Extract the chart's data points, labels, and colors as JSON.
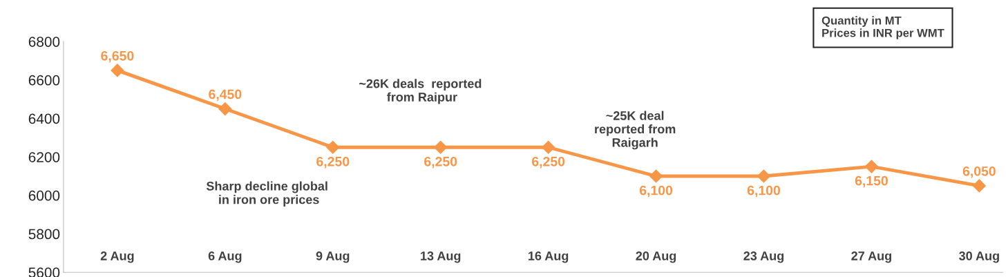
{
  "chart_data": {
    "type": "line",
    "categories": [
      "2 Aug",
      "6 Aug",
      "9 Aug",
      "13 Aug",
      "16 Aug",
      "20 Aug",
      "23 Aug",
      "27 Aug",
      "30 Aug"
    ],
    "series": [
      {
        "color": "#f79646",
        "values": [
          6650,
          6450,
          6250,
          6250,
          6250,
          6100,
          6100,
          6150,
          6050
        ],
        "value_labels": [
          "6,650",
          "6,450",
          "6,250",
          "6,250",
          "6,250",
          "6,100",
          "6,100",
          "6,150",
          "6,050"
        ]
      }
    ],
    "ylim": [
      5600,
      6800
    ],
    "yticks": [
      5600,
      5800,
      6000,
      6200,
      6400,
      6600,
      6800
    ],
    "marker": "diamond",
    "line_style": "solid",
    "grid": false,
    "legend": false,
    "annotations": [
      "~26K deals  reported\n from Raipur",
      "Sharp decline global\n in iron ore prices",
      "~25K deal\nreported from\nRaigarh",
      "Quantity in MT\nPrices in INR per WMT"
    ]
  }
}
